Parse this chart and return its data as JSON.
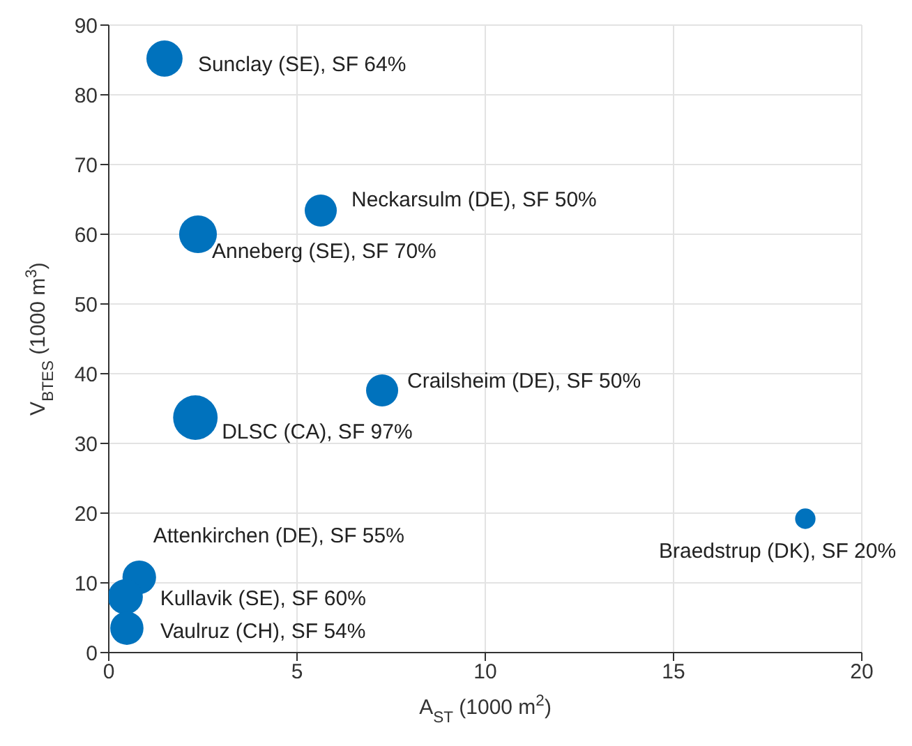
{
  "chart_data": {
    "type": "bubble",
    "xlabel": "A$_{ST}$ (1000 m$^{2}$)",
    "ylabel": "V$_{BTES}$ (1000 m$^{3}$)",
    "x": [
      1.48,
      5.63,
      2.37,
      7.26,
      2.3,
      18.5,
      0.81,
      0.44,
      0.48
    ],
    "values": [
      85.2,
      63.4,
      60,
      37.6,
      33.7,
      19.2,
      10.8,
      8,
      3.5
    ],
    "sizes": [
      0.66,
      0.52,
      0.72,
      0.52,
      1,
      0.21,
      0.57,
      0.62,
      0.56
    ],
    "color": "#0072bd",
    "xlim": [
      0,
      20
    ],
    "xticks": [
      0,
      5,
      10,
      15,
      20
    ],
    "ylim": [
      0,
      90
    ],
    "yticks": [
      0,
      10,
      20,
      30,
      40,
      50,
      60,
      70,
      80,
      90
    ],
    "grid": true,
    "annotations": [
      {
        "text": "Sunclay (SE), SF 64%",
        "x": 1.48,
        "y": 85.2
      },
      {
        "text": "Neckarsulm (DE), SF 50%",
        "x": 5.63,
        "y": 63.4
      },
      {
        "text": "Anneberg (SE), SF 70%",
        "x": 2.37,
        "y": 60
      },
      {
        "text": "Crailsheim (DE), SF 50%",
        "x": 7.26,
        "y": 37.6
      },
      {
        "text": "DLSC (CA), SF 97%",
        "x": 2.3,
        "y": 33.7
      },
      {
        "text": "Braedstrup (DK), SF 20%",
        "x": 18.5,
        "y": 19.2
      },
      {
        "text": "Attenkirchen (DE), SF 55%",
        "x": 0.81,
        "y": 10.8
      },
      {
        "text": "Kullavik (SE), SF 60%",
        "x": 0.44,
        "y": 8
      },
      {
        "text": "Vaulruz (CH), SF 54%",
        "x": 0.48,
        "y": 3.5
      }
    ]
  }
}
